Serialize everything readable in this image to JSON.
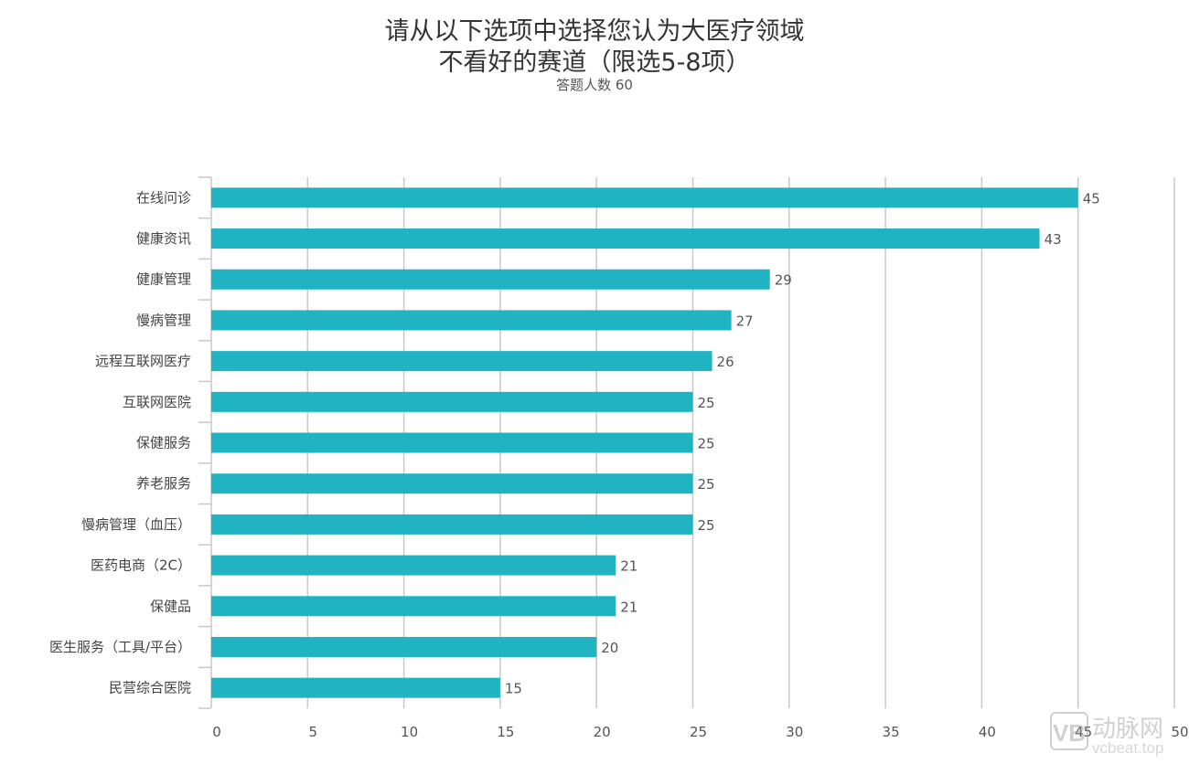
{
  "chart_data": {
    "type": "bar",
    "orientation": "horizontal",
    "title": [
      "请从以下选项中选择您认为大医疗领域",
      "不看好的赛道（限选5-8项）"
    ],
    "subtitle": "答题人数 60",
    "categories": [
      "在线问诊",
      "健康资讯",
      "健康管理",
      "慢病管理",
      "远程互联网医疗",
      "互联网医院",
      "保健服务",
      "养老服务",
      "慢病管理（血压）",
      "医药电商（2C）",
      "保健品",
      "医生服务（工具/平台）",
      "民营综合医院"
    ],
    "values": [
      45,
      43,
      29,
      27,
      26,
      25,
      25,
      25,
      25,
      21,
      21,
      20,
      15
    ],
    "xlim": [
      0,
      50
    ],
    "xticks": [
      "0",
      "5",
      "10",
      "15",
      "20",
      "25",
      "30",
      "35",
      "40",
      "45",
      "50"
    ],
    "xlabel": "",
    "ylabel": "",
    "grid": true,
    "data_labels": true,
    "bar_color": "#20b3c2"
  },
  "watermark": {
    "logo_text": "动脉网",
    "url_text": "vcbeat.top"
  }
}
